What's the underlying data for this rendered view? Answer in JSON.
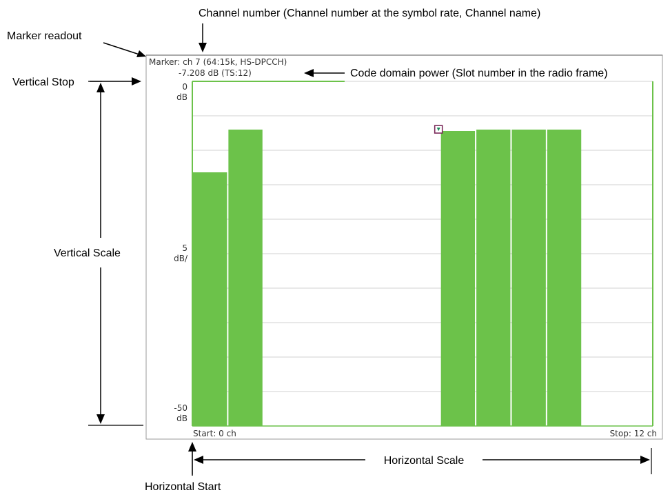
{
  "colors": {
    "bar": "#6cc24a",
    "bar_edge": "#ffffff",
    "grid": "#d0d0d0",
    "frame": "#8a8a8a",
    "marker": "#7a2a5a"
  },
  "readout": {
    "marker_line": "Marker: ch 7 (64:15k, HS-DPCCH)",
    "power_line": "-7.208 dB (TS:12)"
  },
  "axis": {
    "top_value": "0",
    "top_unit": "dB",
    "scale_value": "5",
    "scale_unit": "dB/",
    "bottom_value": "-50",
    "bottom_unit": "dB",
    "start_label": "Start: 0 ch",
    "stop_label": "Stop: 12 ch"
  },
  "annotations": {
    "channel_number": "Channel number (Channel number at the symbol rate, Channel name)",
    "marker_readout": "Marker readout",
    "vertical_stop": "Vertical Stop",
    "code_domain_power": "Code domain power (Slot number in the radio frame)",
    "vertical_scale": "Vertical Scale",
    "horizontal_scale": "Horizontal Scale",
    "horizontal_start": "Horizontal Start"
  },
  "chart_data": {
    "type": "bar",
    "title": "",
    "xlabel": "",
    "ylabel": "",
    "xlim": [
      0,
      13
    ],
    "ylim": [
      -50,
      0
    ],
    "y_tick_step": 5,
    "grid": true,
    "categories": [
      0,
      1,
      2,
      3,
      4,
      5,
      6,
      7,
      8,
      9,
      10,
      11,
      12
    ],
    "values": [
      -13.2,
      -7.0,
      null,
      null,
      null,
      null,
      null,
      -7.2,
      -7.0,
      -7.0,
      -7.0,
      null,
      null
    ],
    "marker": {
      "channel": 7,
      "value": -7.208
    }
  }
}
